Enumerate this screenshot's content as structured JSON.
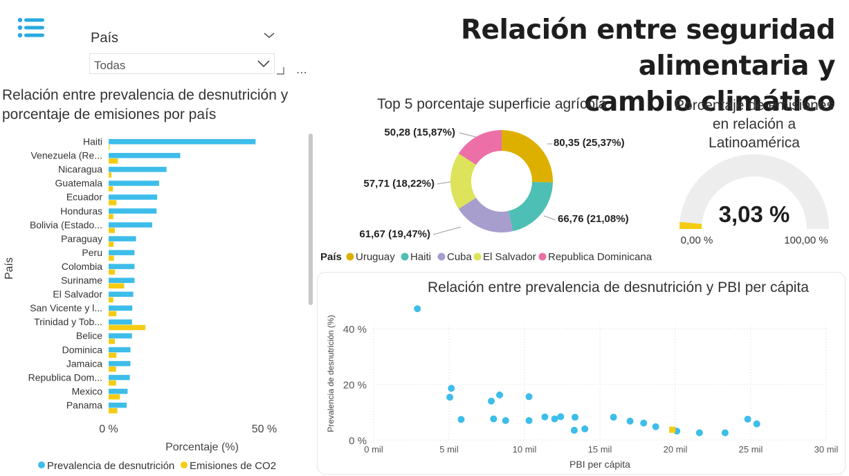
{
  "header": {
    "title_line1": "Relación entre seguridad alimentaria y",
    "title_line2": "cambio climático"
  },
  "slicer": {
    "title": "País",
    "value": "Todas"
  },
  "colors": {
    "blue": "#3DBDEA",
    "yellow": "#F5CC13",
    "uruguay": "#DDB000",
    "haiti": "#4DBFB4",
    "cuba": "#A79ECE",
    "el_salvador": "#DDE35A",
    "rep_dominicana": "#EC6FA8",
    "gauge_bg": "#EDEDED"
  },
  "icons": {
    "menu": "hamburger-list-icon",
    "focus": "focus-mode-icon",
    "more": "more-options-icon"
  },
  "bar_chart": {
    "title_line1": "Relación entre prevalencia de desnutrición y",
    "title_line2": "porcentaje de emisiones por país",
    "more_label": "⋯"
  },
  "donut_chart": {
    "title": "Top 5 porcentaje superficie agrícola",
    "legend_title": "País"
  },
  "gauge": {
    "title_line1": "Porcentaje de emisiones",
    "title_line2": "en relación a",
    "title_line3": "Latinoamérica",
    "value_label": "3,03 %",
    "value": 3.03,
    "min": 0,
    "max": 100,
    "min_label": "0,00 %",
    "max_label": "100,00 %"
  },
  "scatter": {
    "title": "Relación entre prevalencia de desnutrición y PBI per cápita"
  },
  "chart_data": [
    {
      "type": "bar",
      "orientation": "horizontal",
      "ylabel": "País",
      "xlabel": "Porcentaje (%)",
      "xlim": [
        0,
        55
      ],
      "x_ticks": [
        0,
        50
      ],
      "x_tick_labels": [
        "0 %",
        "50 %"
      ],
      "categories": [
        "Haiti",
        "Venezuela (Re...",
        "Nicaragua",
        "Guatemala",
        "Ecuador",
        "Honduras",
        "Bolivia (Estado...",
        "Paraguay",
        "Peru",
        "Colombia",
        "Suriname",
        "El Salvador",
        "San Vicente y l...",
        "Trinidad y Tob...",
        "Belice",
        "Dominica",
        "Jamaica",
        "Republica Dom...",
        "Mexico",
        "Panama"
      ],
      "series": [
        {
          "name": "Prevalencia de desnutrición",
          "color": "#3DBDEA",
          "values": [
            47.2,
            23.0,
            18.6,
            16.2,
            15.6,
            15.4,
            14.0,
            8.8,
            8.3,
            8.3,
            8.3,
            7.9,
            7.6,
            7.5,
            7.5,
            7.0,
            7.0,
            6.8,
            6.1,
            5.8
          ]
        },
        {
          "name": "Emisiones de CO2",
          "color": "#F5CC13",
          "values": [
            0.3,
            3.0,
            0.9,
            1.4,
            2.5,
            1.5,
            2.0,
            1.6,
            1.7,
            2.0,
            5.0,
            1.5,
            2.5,
            11.8,
            2.0,
            2.5,
            2.4,
            2.4,
            3.6,
            2.8
          ]
        }
      ],
      "legend": "bottom",
      "grid": false
    },
    {
      "type": "pie",
      "variant": "donut",
      "categories": [
        "Uruguay",
        "Haiti",
        "Cuba",
        "El Salvador",
        "Republica Dominicana"
      ],
      "values": [
        80.35,
        66.76,
        61.67,
        57.71,
        50.28
      ],
      "labels": [
        "80,35 (25,37%)",
        "66,76 (21,08%)",
        "61,67 (19,47%)",
        "57,71 (18,22%)",
        "50,28 (15,87%)"
      ],
      "colors": [
        "#DDB000",
        "#4DBFB4",
        "#A79ECE",
        "#DDE35A",
        "#EC6FA8"
      ],
      "legend": "bottom"
    },
    {
      "type": "scatter",
      "xlabel": "PBI per cápita",
      "ylabel": "Prevalencia de desnutrición (%)",
      "xlim": [
        0,
        30000
      ],
      "ylim": [
        0,
        50
      ],
      "x_ticks": [
        0,
        5000,
        10000,
        15000,
        20000,
        25000,
        30000
      ],
      "x_tick_labels": [
        "0 mil",
        "5 mil",
        "10 mil",
        "15 mil",
        "20 mil",
        "25 mil",
        "30 mil"
      ],
      "y_ticks": [
        0,
        20,
        40
      ],
      "y_tick_labels": [
        "0 %",
        "20 %",
        "40 %"
      ],
      "grid": true,
      "points": [
        {
          "x": 2900,
          "y": 47.2
        },
        {
          "x": 5050,
          "y": 15.4
        },
        {
          "x": 5150,
          "y": 18.6
        },
        {
          "x": 5800,
          "y": 7.4
        },
        {
          "x": 7800,
          "y": 14.0
        },
        {
          "x": 7950,
          "y": 7.6
        },
        {
          "x": 8350,
          "y": 16.2
        },
        {
          "x": 8750,
          "y": 7.0
        },
        {
          "x": 10300,
          "y": 15.6
        },
        {
          "x": 10300,
          "y": 7.0
        },
        {
          "x": 11350,
          "y": 8.3
        },
        {
          "x": 12000,
          "y": 7.6
        },
        {
          "x": 12400,
          "y": 8.4
        },
        {
          "x": 13300,
          "y": 3.5
        },
        {
          "x": 13350,
          "y": 8.2
        },
        {
          "x": 14000,
          "y": 4.0
        },
        {
          "x": 15900,
          "y": 8.2
        },
        {
          "x": 17000,
          "y": 6.8
        },
        {
          "x": 17900,
          "y": 6.1
        },
        {
          "x": 18700,
          "y": 4.8
        },
        {
          "x": 20100,
          "y": 3.2
        },
        {
          "x": 21600,
          "y": 2.6
        },
        {
          "x": 23300,
          "y": 2.6
        },
        {
          "x": 24800,
          "y": 7.5
        },
        {
          "x": 25400,
          "y": 5.8
        }
      ],
      "highlight": {
        "x": 19800,
        "y": 3.7,
        "color": "#F5CC13"
      }
    }
  ]
}
